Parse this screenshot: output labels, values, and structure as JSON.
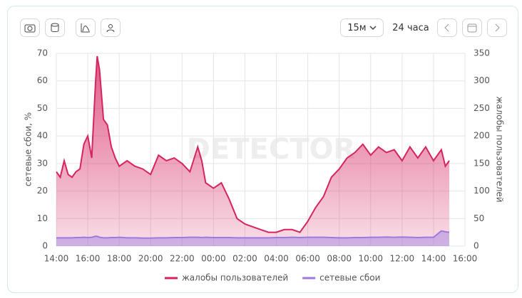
{
  "toolbar": {
    "interval": "15м",
    "period": "24 часа"
  },
  "chart_data": {
    "type": "area",
    "watermark": "DETECTOR",
    "ylabel": "сетевые сбои, %",
    "y2label": "жалобы пользователей",
    "x": [
      0,
      0.25,
      0.5,
      0.75,
      1,
      1.25,
      1.5,
      1.75,
      2,
      2.25,
      2.5,
      2.6,
      2.75,
      3,
      3.25,
      3.5,
      3.75,
      4,
      4.5,
      5,
      5.5,
      6,
      6.5,
      7,
      7.5,
      8,
      8.5,
      9,
      9.25,
      9.5,
      10,
      10.5,
      11,
      11.5,
      12,
      12.5,
      13,
      13.5,
      14,
      14.5,
      15,
      15.5,
      16,
      16.5,
      17,
      17.5,
      18,
      18.5,
      19,
      19.5,
      20,
      20.5,
      21,
      21.5,
      22,
      22.5,
      23,
      23.5,
      24,
      24.5,
      24.75,
      25
    ],
    "xlim": [
      0,
      26
    ],
    "xticks": [
      {
        "value": 0,
        "label": "14:00"
      },
      {
        "value": 2,
        "label": "16:00"
      },
      {
        "value": 4,
        "label": "18:00"
      },
      {
        "value": 6,
        "label": "20:00"
      },
      {
        "value": 8,
        "label": "22:00"
      },
      {
        "value": 10,
        "label": "00:00"
      },
      {
        "value": 12,
        "label": "02:00"
      },
      {
        "value": 14,
        "label": "04:00"
      },
      {
        "value": 16,
        "label": "06:00"
      },
      {
        "value": 18,
        "label": "08:00"
      },
      {
        "value": 20,
        "label": "10:00"
      },
      {
        "value": 22,
        "label": "12:00"
      },
      {
        "value": 24,
        "label": "14:00"
      },
      {
        "value": 26,
        "label": "16:00"
      }
    ],
    "ylim": [
      0,
      70
    ],
    "yticks": [
      0,
      10,
      20,
      30,
      40,
      50,
      60,
      70
    ],
    "y2lim": [
      0,
      350
    ],
    "y2ticks": [
      0,
      50,
      100,
      150,
      200,
      250,
      300,
      350
    ],
    "grid": true,
    "series": [
      {
        "name": "жалобы пользователей",
        "color": "#d6245f",
        "axis": "y2",
        "values": [
          135,
          125,
          155,
          130,
          125,
          135,
          140,
          185,
          200,
          160,
          300,
          345,
          320,
          230,
          220,
          180,
          160,
          145,
          155,
          145,
          140,
          130,
          165,
          155,
          160,
          150,
          135,
          180,
          155,
          115,
          105,
          115,
          85,
          50,
          40,
          35,
          30,
          25,
          25,
          30,
          30,
          25,
          45,
          70,
          90,
          125,
          140,
          160,
          170,
          185,
          165,
          180,
          170,
          175,
          155,
          180,
          160,
          180,
          155,
          175,
          145,
          155
        ]
      },
      {
        "name": "сетевые сбои",
        "color": "#9b7be0",
        "values": [
          3,
          3,
          3,
          3,
          3,
          3.1,
          3.1,
          3.2,
          3.1,
          3.2,
          3.6,
          3.5,
          3.2,
          3,
          3,
          3.1,
          3.1,
          3.2,
          3,
          3,
          2.9,
          2.9,
          3,
          3,
          3.1,
          3.1,
          3.2,
          3.2,
          3.1,
          3.2,
          3.1,
          3.1,
          3.1,
          3,
          3,
          3,
          3,
          3,
          3.1,
          3.1,
          3.2,
          3.1,
          3.2,
          3.2,
          3.2,
          3.1,
          3,
          3,
          3.1,
          3.1,
          3.2,
          3.2,
          3.3,
          3.2,
          3.3,
          3.2,
          3.1,
          3.2,
          3.2,
          5.5,
          5.2,
          5
        ]
      }
    ]
  }
}
